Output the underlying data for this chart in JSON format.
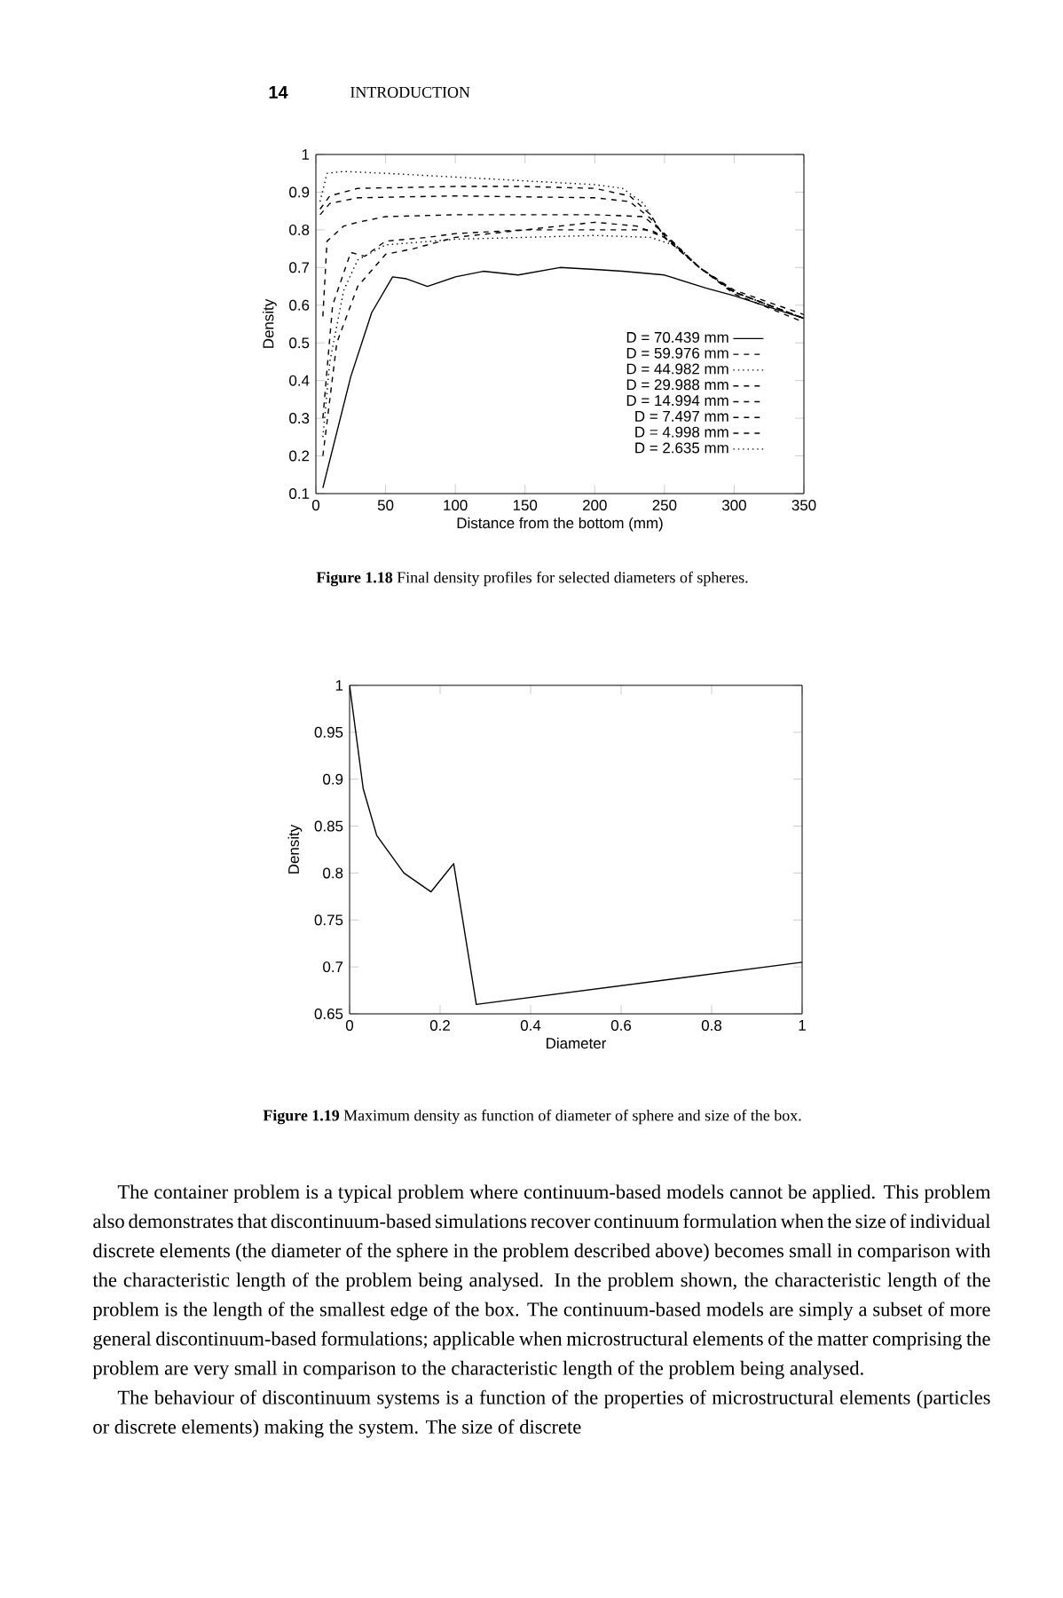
{
  "chart_data": [
    {
      "type": "line",
      "xlabel": "Distance from the bottom (mm)",
      "ylabel": "Density",
      "xlim": [
        0,
        350
      ],
      "ylim": [
        0.1,
        1
      ],
      "xticks": [
        0,
        50,
        100,
        150,
        200,
        250,
        300,
        350
      ],
      "yticks": [
        0.1,
        0.2,
        0.3,
        0.4,
        0.5,
        0.6,
        0.7,
        0.8,
        0.9,
        1
      ],
      "grid": false,
      "legend": "bottom right",
      "annotations": [
        "**14**",
        "INTRODUCTION",
        "**Figure 1.18** Final density profiles for selected diameters of spheres."
      ],
      "series": [
        {
          "name": "D = 70.439 mm",
          "color": "#000000",
          "line_style": "solid",
          "x": [
            5,
            25,
            40,
            55,
            65,
            80,
            100,
            120,
            145,
            175,
            200,
            220,
            250,
            280,
            300,
            350
          ],
          "values": [
            0.115,
            0.41,
            0.58,
            0.675,
            0.67,
            0.65,
            0.675,
            0.69,
            0.68,
            0.7,
            0.695,
            0.69,
            0.68,
            0.645,
            0.625,
            0.565
          ]
        },
        {
          "name": "D = 59.976 mm",
          "color": "#000000",
          "line_style": "dashed",
          "x": [
            5,
            15,
            30,
            50,
            70,
            100,
            150,
            200,
            230,
            250,
            275,
            300,
            350
          ],
          "values": [
            0.2,
            0.5,
            0.65,
            0.735,
            0.75,
            0.78,
            0.8,
            0.82,
            0.81,
            0.78,
            0.7,
            0.635,
            0.565
          ]
        },
        {
          "name": "D = 44.982 mm",
          "color": "#000000",
          "line_style": "dotted",
          "x": [
            5,
            10,
            20,
            30,
            50,
            100,
            150,
            200,
            240,
            260,
            275,
            300,
            350
          ],
          "values": [
            0.25,
            0.45,
            0.64,
            0.72,
            0.76,
            0.775,
            0.78,
            0.785,
            0.78,
            0.755,
            0.7,
            0.635,
            0.565
          ]
        },
        {
          "name": "D = 29.988 mm",
          "color": "#000000",
          "line_style": "dashed",
          "x": [
            5,
            12,
            25,
            35,
            50,
            80,
            100,
            150,
            200,
            240,
            255,
            275,
            300,
            350
          ],
          "values": [
            0.3,
            0.6,
            0.74,
            0.73,
            0.77,
            0.78,
            0.79,
            0.8,
            0.8,
            0.8,
            0.77,
            0.7,
            0.635,
            0.565
          ]
        },
        {
          "name": "D = 14.994 mm",
          "color": "#000000",
          "line_style": "dashed",
          "x": [
            5,
            8,
            20,
            30,
            50,
            100,
            200,
            235,
            250,
            275,
            300,
            350
          ],
          "values": [
            0.57,
            0.77,
            0.81,
            0.82,
            0.835,
            0.84,
            0.84,
            0.835,
            0.79,
            0.7,
            0.635,
            0.565
          ]
        },
        {
          "name": "D = 7.497 mm",
          "color": "#000000",
          "line_style": "dashed",
          "x": [
            3,
            10,
            30,
            100,
            200,
            225,
            240,
            250,
            275,
            300,
            350
          ],
          "values": [
            0.84,
            0.87,
            0.885,
            0.89,
            0.885,
            0.875,
            0.83,
            0.785,
            0.7,
            0.63,
            0.555
          ]
        },
        {
          "name": "D = 4.998 mm",
          "color": "#000000",
          "line_style": "dashed",
          "x": [
            3,
            10,
            30,
            100,
            150,
            200,
            225,
            240,
            250,
            275,
            300,
            350
          ],
          "values": [
            0.855,
            0.89,
            0.91,
            0.915,
            0.915,
            0.91,
            0.89,
            0.84,
            0.78,
            0.7,
            0.64,
            0.575
          ]
        },
        {
          "name": "D = 2.635 mm",
          "color": "#000000",
          "line_style": "dotted",
          "x": [
            3,
            8,
            20,
            50,
            100,
            150,
            200,
            220,
            235,
            250,
            275,
            300,
            325,
            350
          ],
          "values": [
            0.875,
            0.95,
            0.955,
            0.95,
            0.94,
            0.93,
            0.92,
            0.91,
            0.87,
            0.78,
            0.7,
            0.635,
            0.6,
            0.565
          ]
        }
      ]
    },
    {
      "type": "line",
      "xlabel": "Diameter",
      "ylabel": "Density",
      "xlim": [
        0,
        1
      ],
      "ylim": [
        0.65,
        1
      ],
      "xticks": [
        0,
        0.2,
        0.4,
        0.6,
        0.8,
        1
      ],
      "yticks": [
        0.65,
        0.7,
        0.75,
        0.8,
        0.85,
        0.9,
        0.95,
        1
      ],
      "grid": false,
      "x": [
        0,
        0.03,
        0.06,
        0.12,
        0.18,
        0.23,
        0.28,
        1
      ],
      "values": [
        1,
        0.89,
        0.84,
        0.8,
        0.78,
        0.81,
        0.66,
        0.705
      ],
      "color": "#000000",
      "annotations": [
        "**Figure 1.19** Maximum density as function of diameter of sphere and size of the box.",
        "The container problem is a typical problem where continuum-based models cannot be applied. This problem also demonstrates that discontinuum-based simulations recover continuum formulation when the size of individual discrete elements (the diameter of the sphere in the problem described above) becomes small in comparison with the characteristic length of the problem being analysed. In the problem shown, the characteristic length of the problem is the length of the smallest edge of the box. The continuum-based models are simply a subset of more general discontinuum-based formulations; applicable when microstructural elements of the matter comprising the problem are very small in comparison to the characteristic length of the problem being analysed.",
        "The behaviour of discontinuum systems is a function of the properties of microstructural elements (particles or discrete elements) making the system. The size of discrete"
      ]
    }
  ]
}
